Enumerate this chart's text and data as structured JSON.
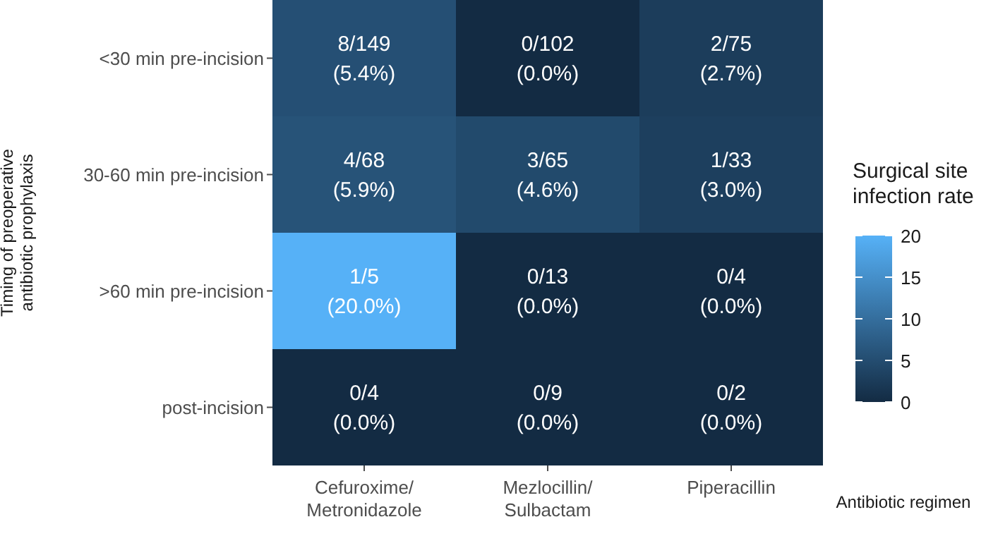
{
  "chart_data": {
    "type": "heatmap",
    "xlabel": "Antibiotic regimen",
    "ylabel": "Timing of preoperative\nantibiotic prophylaxis",
    "clabel": "Surgical site\ninfection rate",
    "categories": [
      "Cefuroxime/\nMetronidazole",
      "Mezlocillin/\nSulbactam",
      "Piperacillin"
    ],
    "y_categories": [
      "<30 min pre-incision",
      "30-60 min pre-incision",
      ">60 min pre-incision",
      "post-incision"
    ],
    "cells": [
      [
        5.4,
        0.0,
        2.7
      ],
      [
        5.9,
        4.6,
        3.0
      ],
      [
        20.0,
        0.0,
        0.0
      ],
      [
        0.0,
        0.0,
        0.0
      ]
    ],
    "cell_labels": [
      [
        "8/149\n(5.4%)",
        "0/102\n(0.0%)",
        "2/75\n(2.7%)"
      ],
      [
        "4/68\n(5.9%)",
        "3/65\n(4.6%)",
        "1/33\n(3.0%)"
      ],
      [
        "1/5\n(20.0%)",
        "0/13\n(0.0%)",
        "0/4\n(0.0%)"
      ],
      [
        "0/4\n(0.0%)",
        "0/9\n(0.0%)",
        "0/2\n(0.0%)"
      ]
    ],
    "clim": [
      0,
      20
    ],
    "cticks": [
      0,
      5,
      10,
      15,
      20
    ],
    "colors": [
      "#132b43",
      "#56b1f7"
    ]
  }
}
